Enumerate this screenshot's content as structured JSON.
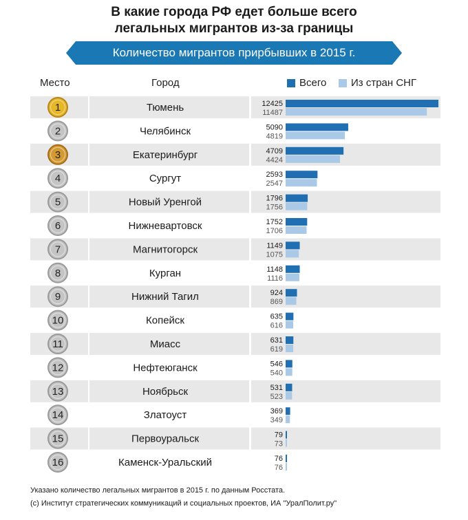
{
  "title_line1": "В какие города РФ едет больше всего",
  "title_line2": "легальных мигрантов из-за границы",
  "ribbon": "Количество мигрантов прирбывших в 2015 г.",
  "headers": {
    "rank": "Место",
    "city": "Город"
  },
  "colors": {
    "total": "#1f6fb2",
    "cis": "#a9c9e6",
    "row_band": "#e8e8e8",
    "ribbon": "#1a78b4",
    "gold": "#e6b727",
    "bronze": "#d39a32",
    "grey_badge": "#c4c4c4"
  },
  "footnote_1": "Указано количество легальных мигрантов в 2015 г. по данным Росстата.",
  "footnote_2": "(с) Институт стратегических коммуникаций и социальных проектов, ИА \"УралПолит.ру\"",
  "chart_data": {
    "type": "bar",
    "orientation": "horizontal",
    "legend_placement": "top-right",
    "xlim": [
      0,
      12425
    ],
    "categories": [
      "Тюмень",
      "Челябинск",
      "Екатеринбург",
      "Сургут",
      "Новый Уренгой",
      "Нижневартовск",
      "Магнитогорск",
      "Курган",
      "Нижний Тагил",
      "Копейск",
      "Миасс",
      "Нефтеюганск",
      "Ноябрьск",
      "Златоуст",
      "Первоуральск",
      "Каменск-Уральский"
    ],
    "ranks": [
      "1",
      "2",
      "3",
      "4",
      "5",
      "6",
      "7",
      "8",
      "9",
      "10",
      "11",
      "12",
      "13",
      "14",
      "15",
      "16"
    ],
    "series": [
      {
        "name": "Всего",
        "values": [
          12425,
          5090,
          4709,
          2593,
          1796,
          1752,
          1149,
          1148,
          924,
          635,
          631,
          546,
          531,
          369,
          79,
          76
        ]
      },
      {
        "name": "Из стран СНГ",
        "values": [
          11487,
          4819,
          4424,
          2547,
          1756,
          1706,
          1075,
          1116,
          869,
          616,
          619,
          540,
          523,
          349,
          73,
          76
        ]
      }
    ]
  }
}
